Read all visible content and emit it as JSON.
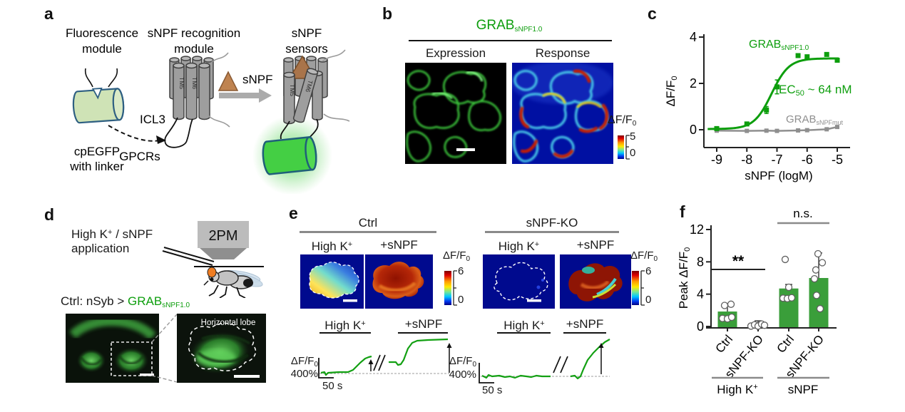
{
  "colors": {
    "green": "#0d9e0d",
    "gray": "#8f8f8f",
    "bar_green": "#3a9e3a",
    "trace_green": "#12a012",
    "heat_navy": "#000a8e"
  },
  "panel_a": {
    "label": "a",
    "fluorescence_l1": "Fluorescence",
    "fluorescence_l2": "module",
    "recognition_l1": "sNPF recognition",
    "recognition_l2": "module",
    "sensors_l1": "sNPF",
    "sensors_l2": "sensors",
    "snpf_ligand": "sNPF",
    "icl3": "ICL3",
    "gpcrs": "GPCRs",
    "cpegfp_l1": "cpEGFP",
    "cpegfp_l2": "with linker",
    "tm5": "TM5",
    "tm6": "TM6"
  },
  "panel_b": {
    "label": "b",
    "title_base": "GRAB",
    "title_sub": "sNPF1.0",
    "expression": "Expression",
    "response": "Response",
    "cbar_base": "ΔF/F",
    "cbar_sub": "0",
    "cbar_max": "5",
    "cbar_min": "0"
  },
  "panel_c": {
    "label": "c"
  },
  "panel_d": {
    "label": "d",
    "app_base": "High K",
    "app_sup": "+",
    "app_rest": " / sNPF",
    "app_l2": "application",
    "microscope": "2PM",
    "genotype_prefix": "Ctrl: nSyb > ",
    "genotype_base": "GRAB",
    "genotype_sub": "sNPF1.0",
    "horizontal_lobe": "Horizontal lobe"
  },
  "panel_e": {
    "label": "e",
    "group1": "Ctrl",
    "group2": "sNPF-KO",
    "cond1_base": "High K",
    "cond1_sup": "+",
    "cond2": "+sNPF",
    "cbar_base": "ΔF/F",
    "cbar_sub": "0",
    "cbar_max": "6",
    "cbar_min": "0",
    "scale_base": "ΔF/F",
    "scale_sub": "0",
    "scale_pct": "400%",
    "scale_time": "50 s",
    "traces": {
      "color": "#12a012",
      "baseline_color": "#b0b0b0",
      "blocks": [
        {
          "baseline_y": 84,
          "baseline_x": [
            48,
            230
          ],
          "segments": [
            [
              [
                50,
                83
              ],
              [
                55,
                82
              ],
              [
                57,
                86
              ],
              [
                60,
                83
              ],
              [
                75,
                82
              ],
              [
                88,
                82
              ],
              [
                95,
                79
              ],
              [
                105,
                69
              ],
              [
                112,
                63
              ],
              [
                117,
                61
              ],
              [
                121,
                60
              ]
            ],
            [
              [
                145,
                68
              ],
              [
                155,
                68
              ],
              [
                158,
                72
              ],
              [
                162,
                71
              ],
              [
                166,
                65
              ],
              [
                172,
                49
              ],
              [
                178,
                41
              ],
              [
                185,
                38
              ],
              [
                200,
                37
              ],
              [
                228,
                36
              ]
            ]
          ],
          "breaks": [
            [
              124,
              80,
              133,
              58
            ],
            [
              131,
              80,
              140,
              58
            ]
          ],
          "arrows": [
            {
              "x": 120,
              "y1": 81,
              "y2": 64
            },
            {
              "x": 230,
              "y1": 83,
              "y2": 41
            }
          ],
          "scale": {
            "x": 47,
            "y1": 62,
            "y2": 90,
            "x2": 68
          }
        },
        {
          "baseline_y": 88,
          "baseline_x": [
            674,
            855
          ],
          "segments": [
            [
              [
                276,
                87
              ],
              [
                282,
                90
              ],
              [
                285,
                86
              ],
              [
                290,
                88
              ],
              [
                300,
                87
              ],
              [
                308,
                89
              ],
              [
                315,
                88
              ],
              [
                322,
                90
              ],
              [
                330,
                87
              ],
              [
                338,
                88
              ],
              [
                345,
                89
              ],
              [
                352,
                87
              ],
              [
                360,
                88
              ],
              [
                372,
                88
              ]
            ],
            [
              [
                400,
                88
              ],
              [
                406,
                87
              ],
              [
                410,
                91
              ],
              [
                414,
                88
              ],
              [
                418,
                78
              ],
              [
                424,
                65
              ],
              [
                432,
                55
              ],
              [
                440,
                47
              ],
              [
                448,
                40
              ],
              [
                455,
                36
              ]
            ]
          ],
          "breaks": [
            [
              376,
              83,
              386,
              60
            ],
            [
              386,
              83,
              396,
              60
            ]
          ],
          "arrows": [
            {
              "x": 443,
              "y1": 85,
              "y2": 41
            }
          ],
          "scale": {
            "x": 272,
            "y1": 69,
            "y2": 97,
            "x2": 293
          }
        }
      ]
    }
  },
  "panel_f": {
    "label": "f"
  },
  "chart_data": [
    {
      "id": "panel-c-chart",
      "type": "line",
      "xlabel": "sNPF (logM)",
      "ylabel_base": "ΔF/F",
      "ylabel_sub": "0",
      "xticks": [
        -9,
        -8,
        -7,
        -6,
        -5
      ],
      "yticks": [
        0,
        2,
        4
      ],
      "xlim": [
        -9.4,
        -4.8
      ],
      "ylim": [
        -0.35,
        4.15
      ],
      "annotation_ec50_base": "EC",
      "annotation_ec50_sub": "50",
      "annotation_ec50_rest": " ~ 64 nM",
      "series": [
        {
          "name_base": "GRAB",
          "name_sub": "sNPF1.0",
          "color": "#0d9e0d",
          "x": [
            -9,
            -8,
            -7.35,
            -7,
            -6.3,
            -6,
            -5.35,
            -5
          ],
          "y": [
            0.05,
            0.25,
            0.85,
            1.85,
            3.2,
            3.15,
            3.25,
            3.0
          ],
          "yerr": [
            0,
            0,
            0.15,
            0.3,
            0,
            0,
            0,
            0
          ],
          "fit": {
            "bottom": 0.03,
            "top": 3.08,
            "logec50": -7.18,
            "hill": 1.5
          }
        },
        {
          "name_base": "GRAB",
          "name_sub": "sNPFmut",
          "color": "#8f8f8f",
          "x": [
            -9,
            -8,
            -7.35,
            -7,
            -6.3,
            -6,
            -5.35,
            -5
          ],
          "y": [
            -0.04,
            -0.05,
            -0.04,
            -0.05,
            -0.03,
            -0.02,
            0.02,
            0.12
          ],
          "yerr": [
            0,
            0,
            0,
            0,
            0,
            0,
            0,
            0
          ]
        }
      ]
    },
    {
      "id": "panel-f-chart",
      "type": "bar",
      "ylabel_base": "Peak ΔF/F",
      "ylabel_sub": "0",
      "yticks": [
        0,
        4,
        8,
        12
      ],
      "ylim": [
        0,
        12.7
      ],
      "categories": [
        "Ctrl",
        "sNPF-KO",
        "Ctrl",
        "sNPF-KO"
      ],
      "group_labels": [
        {
          "base": "High K",
          "sup": "+"
        },
        {
          "base": "sNPF",
          "sup": ""
        }
      ],
      "bar_color": "#3a9e3a",
      "values": [
        1.85,
        0.25,
        4.7,
        6.0
      ],
      "errors": [
        0.8,
        0.45,
        0.5,
        3.1
      ],
      "points": [
        [
          {
            "v": 1.0,
            "dx": -7
          },
          {
            "v": 0.95,
            "dx": 0
          },
          {
            "v": 1.15,
            "dx": 6
          },
          {
            "v": 2.6,
            "dx": -4
          },
          {
            "v": 2.75,
            "dx": 5
          }
        ],
        [
          {
            "v": 0.05,
            "dx": -10
          },
          {
            "v": 0.2,
            "dx": -5
          },
          {
            "v": 0.05,
            "dx": 0
          },
          {
            "v": 0.3,
            "dx": 5
          },
          {
            "v": 0.15,
            "dx": 9
          }
        ],
        [
          {
            "v": 3.5,
            "dx": -8
          },
          {
            "v": 3.45,
            "dx": -2
          },
          {
            "v": 3.55,
            "dx": 4
          },
          {
            "v": 4.85,
            "dx": 0
          },
          {
            "v": 8.3,
            "dx": -5
          }
        ],
        [
          {
            "v": 2.2,
            "dx": 2
          },
          {
            "v": 3.85,
            "dx": -3
          },
          {
            "v": 5.9,
            "dx": -6
          },
          {
            "v": 7.0,
            "dx": -4
          },
          {
            "v": 7.9,
            "dx": 5
          },
          {
            "v": 9.0,
            "dx": -1
          }
        ]
      ],
      "significance": [
        {
          "label": "**"
        },
        {
          "label": "n.s."
        }
      ]
    }
  ]
}
